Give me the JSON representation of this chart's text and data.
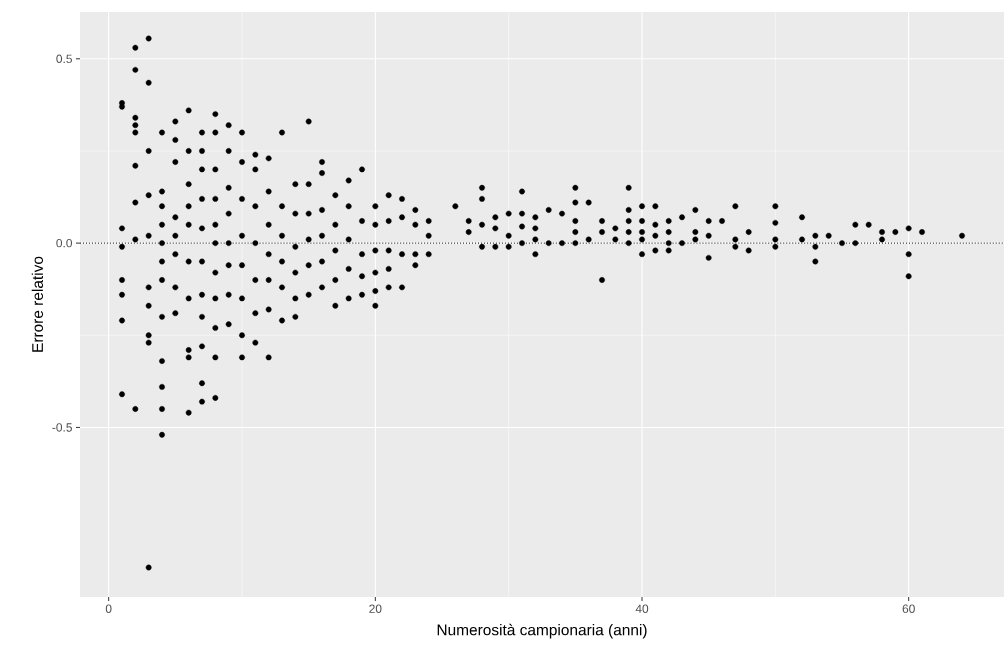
{
  "chart_data": {
    "type": "scatter",
    "xlabel": "Numerosità campionaria (anni)",
    "ylabel": "Errore relativo",
    "xlim": [
      -2.15,
      67.15
    ],
    "ylim": [
      -0.96,
      0.627
    ],
    "xticks": [
      0,
      20,
      40,
      60
    ],
    "yticks": [
      -0.5,
      {
        "value": 0,
        "label": "0.0"
      },
      0.5
    ],
    "grid": true,
    "marker": "circle",
    "color": "#000000",
    "ref_lines": [
      {
        "axis": "y",
        "value": 0,
        "line_style": "dotted",
        "color": "#000000"
      }
    ],
    "x": [
      1,
      1,
      1,
      1,
      1,
      1,
      1,
      1,
      2,
      2,
      2,
      2,
      2,
      2,
      2,
      2,
      2,
      3,
      3,
      3,
      3,
      3,
      3,
      3,
      3,
      3,
      3,
      4,
      4,
      4,
      4,
      4,
      4,
      4,
      4,
      4,
      4,
      4,
      4,
      5,
      5,
      5,
      5,
      5,
      5,
      5,
      5,
      6,
      6,
      6,
      6,
      6,
      6,
      6,
      6,
      6,
      6,
      7,
      7,
      7,
      7,
      7,
      7,
      7,
      7,
      7,
      7,
      7,
      8,
      8,
      8,
      8,
      8,
      8,
      8,
      8,
      8,
      8,
      8,
      9,
      9,
      9,
      9,
      9,
      9,
      9,
      9,
      10,
      10,
      10,
      10,
      10,
      10,
      10,
      10,
      11,
      11,
      11,
      11,
      11,
      11,
      11,
      12,
      12,
      12,
      12,
      12,
      12,
      12,
      13,
      13,
      13,
      13,
      13,
      13,
      14,
      14,
      14,
      14,
      14,
      14,
      15,
      15,
      15,
      15,
      15,
      15,
      16,
      16,
      16,
      16,
      16,
      16,
      17,
      17,
      17,
      17,
      17,
      18,
      18,
      18,
      18,
      18,
      19,
      19,
      19,
      19,
      19,
      20,
      20,
      20,
      20,
      20,
      20,
      21,
      21,
      21,
      21,
      21,
      22,
      22,
      22,
      22,
      23,
      23,
      23,
      23,
      24,
      24,
      24,
      26,
      27,
      27,
      28,
      28,
      28,
      28,
      29,
      29,
      29,
      30,
      30,
      30,
      31,
      31,
      31,
      31,
      32,
      32,
      32,
      32,
      33,
      33,
      34,
      34,
      35,
      35,
      35,
      35,
      35,
      36,
      36,
      37,
      37,
      37,
      38,
      38,
      39,
      39,
      39,
      39,
      39,
      40,
      40,
      40,
      40,
      40,
      41,
      41,
      41,
      41,
      42,
      42,
      42,
      42,
      43,
      43,
      44,
      44,
      44,
      45,
      45,
      45,
      46,
      47,
      47,
      47,
      48,
      48,
      50,
      50,
      50,
      50,
      52,
      52,
      53,
      53,
      53,
      54,
      55,
      56,
      56,
      57,
      58,
      58,
      59,
      60,
      60,
      60,
      61,
      64
    ],
    "values": [
      0.38,
      0.37,
      0.04,
      -0.01,
      -0.1,
      -0.14,
      -0.21,
      -0.41,
      0.53,
      0.47,
      0.34,
      0.32,
      0.3,
      0.21,
      0.11,
      0.01,
      -0.45,
      0.555,
      0.435,
      0.25,
      0.13,
      0.02,
      -0.12,
      -0.17,
      -0.25,
      -0.27,
      -0.88,
      0.3,
      0.14,
      0.1,
      0.05,
      0.0,
      -0.05,
      -0.1,
      -0.2,
      -0.32,
      -0.39,
      -0.45,
      -0.52,
      0.33,
      0.28,
      0.22,
      0.07,
      0.02,
      -0.03,
      -0.12,
      -0.19,
      0.36,
      0.25,
      0.16,
      0.1,
      0.05,
      -0.05,
      -0.15,
      -0.29,
      -0.31,
      -0.46,
      0.3,
      0.25,
      0.2,
      0.12,
      0.04,
      -0.05,
      -0.14,
      -0.2,
      -0.28,
      -0.38,
      -0.43,
      0.35,
      0.3,
      0.2,
      0.12,
      0.05,
      0.0,
      -0.08,
      -0.15,
      -0.23,
      -0.31,
      -0.42,
      0.32,
      0.25,
      0.15,
      0.08,
      0.0,
      -0.06,
      -0.14,
      -0.22,
      0.3,
      0.22,
      0.12,
      0.02,
      -0.06,
      -0.15,
      -0.25,
      -0.31,
      0.24,
      0.2,
      0.1,
      0.0,
      -0.1,
      -0.19,
      -0.27,
      0.23,
      0.14,
      0.05,
      -0.03,
      -0.1,
      -0.18,
      -0.31,
      0.3,
      0.1,
      0.02,
      -0.05,
      -0.12,
      -0.21,
      0.16,
      0.08,
      -0.01,
      -0.08,
      -0.15,
      -0.2,
      0.33,
      0.16,
      0.08,
      0.01,
      -0.06,
      -0.14,
      0.22,
      0.19,
      0.09,
      0.02,
      -0.05,
      -0.12,
      0.13,
      0.05,
      -0.02,
      -0.1,
      -0.17,
      0.17,
      0.1,
      0.01,
      -0.07,
      -0.15,
      0.2,
      0.06,
      -0.03,
      -0.09,
      -0.14,
      0.1,
      0.05,
      -0.02,
      -0.08,
      -0.13,
      -0.17,
      0.13,
      0.06,
      -0.02,
      -0.07,
      -0.12,
      0.12,
      0.07,
      -0.03,
      -0.12,
      0.09,
      0.05,
      -0.03,
      -0.06,
      0.06,
      0.02,
      -0.03,
      0.1,
      0.06,
      0.03,
      0.15,
      0.12,
      0.05,
      -0.01,
      0.07,
      0.04,
      -0.01,
      0.08,
      0.02,
      -0.01,
      0.14,
      0.08,
      0.045,
      0.0,
      0.07,
      0.04,
      0.01,
      -0.03,
      0.09,
      0.0,
      0.08,
      0.0,
      0.15,
      0.11,
      0.06,
      0.03,
      0.0,
      0.11,
      0.01,
      0.06,
      0.03,
      -0.1,
      0.04,
      0.01,
      0.15,
      0.09,
      0.06,
      0.03,
      0.0,
      0.1,
      0.06,
      0.03,
      0.01,
      -0.03,
      0.1,
      0.05,
      0.02,
      -0.02,
      0.06,
      0.03,
      0.0,
      -0.02,
      0.07,
      0.0,
      0.09,
      0.03,
      0.01,
      0.06,
      0.02,
      -0.04,
      0.06,
      0.1,
      0.01,
      -0.01,
      0.03,
      -0.02,
      0.1,
      0.055,
      0.01,
      -0.01,
      0.07,
      0.01,
      0.02,
      -0.01,
      -0.05,
      0.02,
      0.0,
      0.05,
      0.0,
      0.05,
      0.03,
      0.01,
      0.03,
      0.04,
      -0.03,
      -0.09,
      0.03,
      0.02
    ]
  }
}
